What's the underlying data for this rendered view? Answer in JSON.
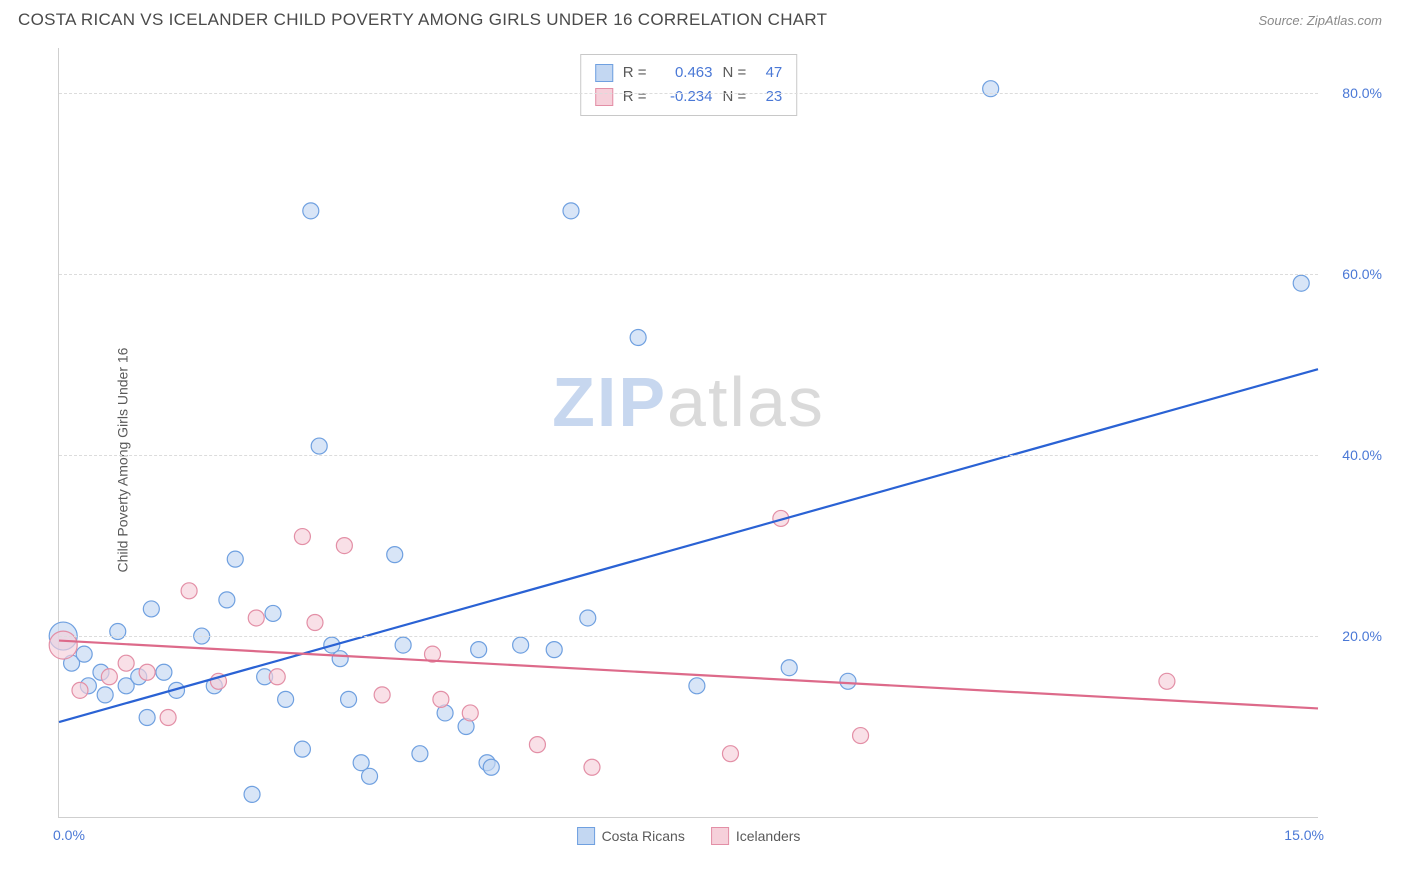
{
  "header": {
    "title": "COSTA RICAN VS ICELANDER CHILD POVERTY AMONG GIRLS UNDER 16 CORRELATION CHART",
    "source": "Source: ZipAtlas.com"
  },
  "ylabel": "Child Poverty Among Girls Under 16",
  "watermark": {
    "zip": "ZIP",
    "atlas": "atlas"
  },
  "chart": {
    "type": "scatter-with-regression",
    "xlim": [
      0,
      15
    ],
    "ylim": [
      0,
      85
    ],
    "grid_y_values": [
      20,
      40,
      60,
      80
    ],
    "ytick_labels": [
      "20.0%",
      "40.0%",
      "60.0%",
      "80.0%"
    ],
    "xtick_left": "0.0%",
    "xtick_right": "15.0%",
    "grid_color": "#dcdcdc",
    "axis_color": "#cfcfcf",
    "background_color": "#ffffff",
    "marker_radius": 8,
    "marker_radius_large": 14,
    "marker_stroke_width": 1.2,
    "line_width": 2.2,
    "ytick_color": "#4a78d6",
    "series": [
      {
        "name": "Costa Ricans",
        "fill": "#c3d7f2",
        "stroke": "#6fa0e0",
        "line_color": "#2a62d4",
        "R_label": "R =",
        "R": "0.463",
        "N_label": "N =",
        "N": "47",
        "regression": {
          "x1": 0,
          "y1": 10.5,
          "x2": 15,
          "y2": 49.5
        },
        "points": [
          {
            "x": 0.05,
            "y": 20,
            "r": 14
          },
          {
            "x": 0.15,
            "y": 17
          },
          {
            "x": 0.3,
            "y": 18
          },
          {
            "x": 0.35,
            "y": 14.5
          },
          {
            "x": 0.5,
            "y": 16
          },
          {
            "x": 0.55,
            "y": 13.5
          },
          {
            "x": 0.7,
            "y": 20.5
          },
          {
            "x": 0.8,
            "y": 14.5
          },
          {
            "x": 0.95,
            "y": 15.5
          },
          {
            "x": 1.05,
            "y": 11
          },
          {
            "x": 1.1,
            "y": 23
          },
          {
            "x": 1.25,
            "y": 16
          },
          {
            "x": 1.4,
            "y": 14
          },
          {
            "x": 1.7,
            "y": 20
          },
          {
            "x": 1.85,
            "y": 14.5
          },
          {
            "x": 2.0,
            "y": 24
          },
          {
            "x": 2.1,
            "y": 28.5
          },
          {
            "x": 2.3,
            "y": 2.5
          },
          {
            "x": 2.45,
            "y": 15.5
          },
          {
            "x": 2.55,
            "y": 22.5
          },
          {
            "x": 2.7,
            "y": 13
          },
          {
            "x": 2.9,
            "y": 7.5
          },
          {
            "x": 3.0,
            "y": 67
          },
          {
            "x": 3.1,
            "y": 41
          },
          {
            "x": 3.25,
            "y": 19
          },
          {
            "x": 3.35,
            "y": 17.5
          },
          {
            "x": 3.45,
            "y": 13
          },
          {
            "x": 3.6,
            "y": 6
          },
          {
            "x": 3.7,
            "y": 4.5
          },
          {
            "x": 4.0,
            "y": 29
          },
          {
            "x": 4.1,
            "y": 19
          },
          {
            "x": 4.3,
            "y": 7
          },
          {
            "x": 4.6,
            "y": 11.5
          },
          {
            "x": 4.85,
            "y": 10
          },
          {
            "x": 5.0,
            "y": 18.5
          },
          {
            "x": 5.1,
            "y": 6
          },
          {
            "x": 5.15,
            "y": 5.5
          },
          {
            "x": 5.5,
            "y": 19
          },
          {
            "x": 5.9,
            "y": 18.5
          },
          {
            "x": 6.1,
            "y": 67
          },
          {
            "x": 6.3,
            "y": 22
          },
          {
            "x": 6.9,
            "y": 53
          },
          {
            "x": 7.6,
            "y": 14.5
          },
          {
            "x": 8.7,
            "y": 16.5
          },
          {
            "x": 9.4,
            "y": 15
          },
          {
            "x": 11.1,
            "y": 80.5
          },
          {
            "x": 14.8,
            "y": 59
          }
        ]
      },
      {
        "name": "Icelanders",
        "fill": "#f6d0da",
        "stroke": "#e38fa6",
        "line_color": "#dd6a8a",
        "R_label": "R =",
        "R": "-0.234",
        "N_label": "N =",
        "N": "23",
        "regression": {
          "x1": 0,
          "y1": 19.5,
          "x2": 15,
          "y2": 12.0
        },
        "points": [
          {
            "x": 0.05,
            "y": 19,
            "r": 14
          },
          {
            "x": 0.25,
            "y": 14
          },
          {
            "x": 0.6,
            "y": 15.5
          },
          {
            "x": 0.8,
            "y": 17
          },
          {
            "x": 1.05,
            "y": 16
          },
          {
            "x": 1.3,
            "y": 11
          },
          {
            "x": 1.55,
            "y": 25
          },
          {
            "x": 1.9,
            "y": 15
          },
          {
            "x": 2.35,
            "y": 22
          },
          {
            "x": 2.6,
            "y": 15.5
          },
          {
            "x": 2.9,
            "y": 31
          },
          {
            "x": 3.05,
            "y": 21.5
          },
          {
            "x": 3.4,
            "y": 30
          },
          {
            "x": 3.85,
            "y": 13.5
          },
          {
            "x": 4.45,
            "y": 18
          },
          {
            "x": 4.55,
            "y": 13
          },
          {
            "x": 4.9,
            "y": 11.5
          },
          {
            "x": 5.7,
            "y": 8
          },
          {
            "x": 6.35,
            "y": 5.5
          },
          {
            "x": 8.0,
            "y": 7
          },
          {
            "x": 8.6,
            "y": 33
          },
          {
            "x": 9.55,
            "y": 9
          },
          {
            "x": 13.2,
            "y": 15
          }
        ]
      }
    ]
  },
  "legend_bottom": [
    {
      "label": "Costa Ricans",
      "fill": "#c3d7f2",
      "stroke": "#6fa0e0"
    },
    {
      "label": "Icelanders",
      "fill": "#f6d0da",
      "stroke": "#e38fa6"
    }
  ]
}
